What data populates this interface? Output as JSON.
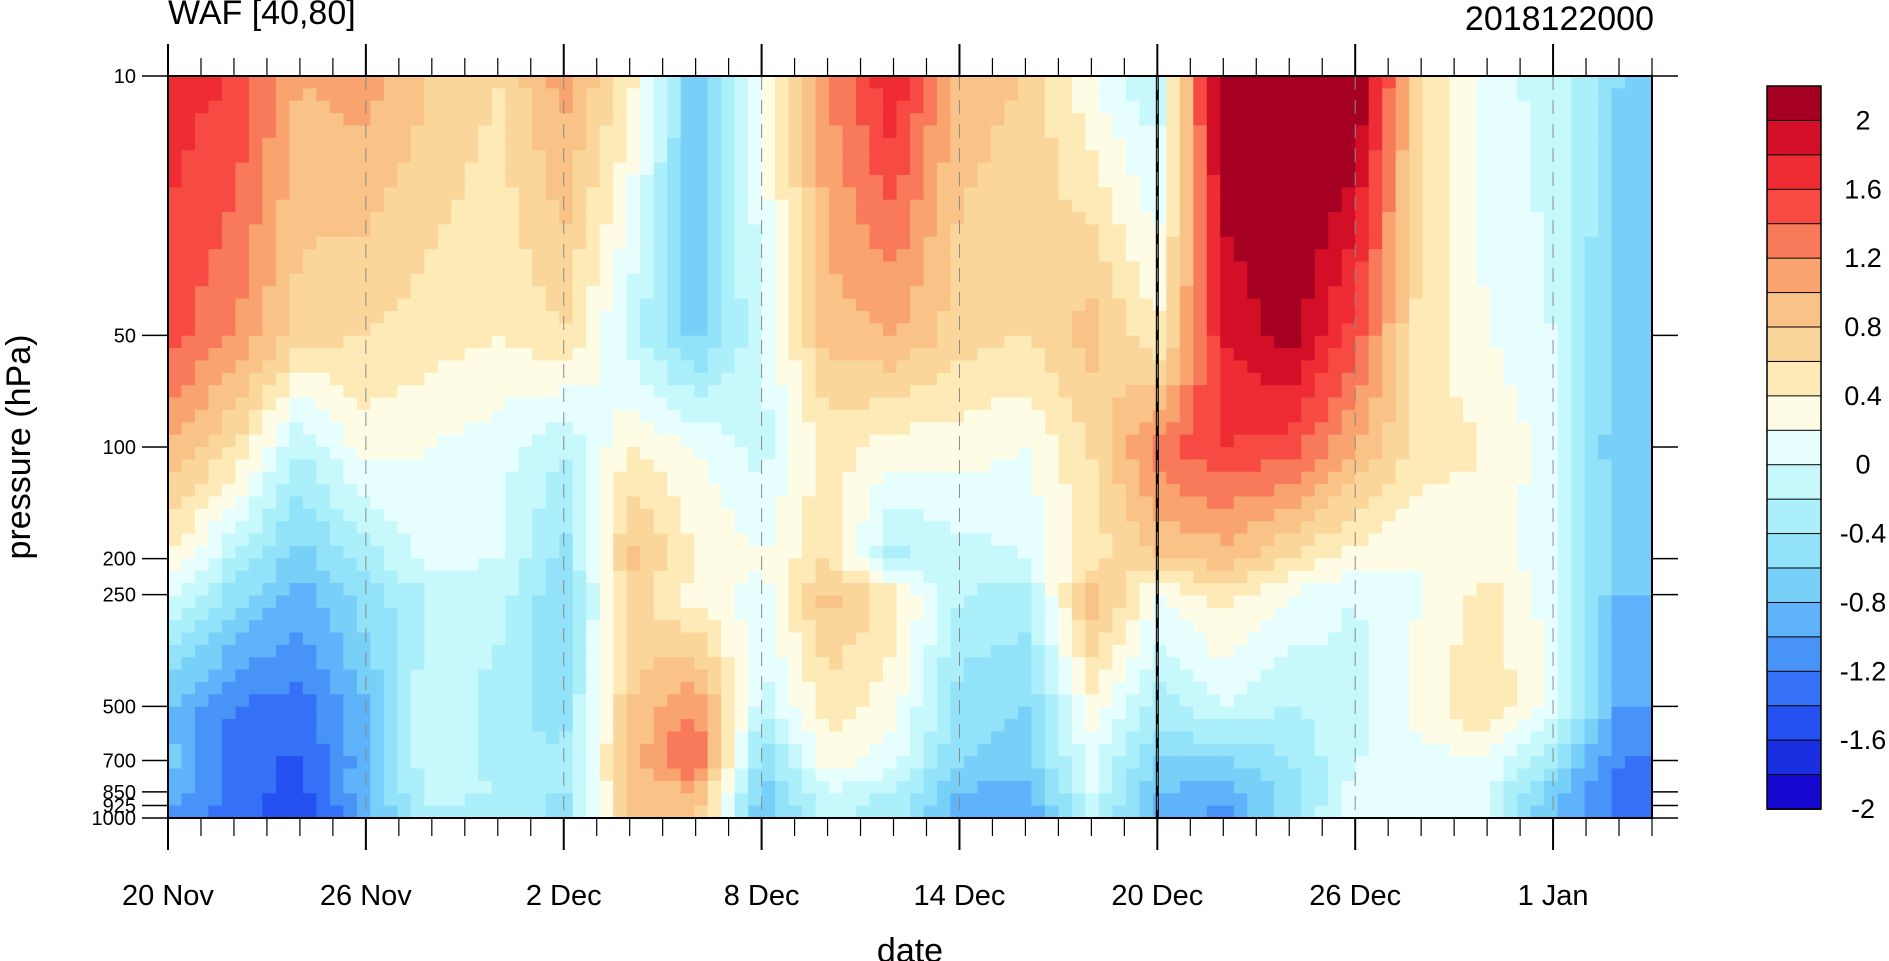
{
  "chart_data": {
    "type": "heatmap",
    "title": "WAF [40,80]",
    "subtitle": "2018122000",
    "xlabel": "date",
    "ylabel": "pressure (hPa)",
    "x_ticks": [
      "20 Nov",
      "26 Nov",
      "2 Dec",
      "8 Dec",
      "14 Dec",
      "20 Dec",
      "26 Dec",
      "1 Jan"
    ],
    "y_ticks": [
      "10",
      "50",
      "100",
      "200",
      "250",
      "500",
      "700",
      "850",
      "925",
      "1000"
    ],
    "y_scale": "log",
    "ylim": [
      1000,
      10
    ],
    "grid": false,
    "marked_date": "20 Dec",
    "legend": {
      "position": "right",
      "labels": [
        "2",
        "1.6",
        "1.2",
        "0.8",
        "0.4",
        "0",
        "-0.4",
        "-0.8",
        "-1.2",
        "-1.6",
        "-2"
      ],
      "levels": [
        2.2,
        2.0,
        1.8,
        1.6,
        1.4,
        1.2,
        1.0,
        0.8,
        0.6,
        0.4,
        0.2,
        0.0,
        -0.2,
        -0.4,
        -0.6,
        -0.8,
        -1.0,
        -1.2,
        -1.4,
        -1.6,
        -1.8,
        -2.0,
        -2.2
      ],
      "colors": [
        "#a50021",
        "#d20f26",
        "#ef2b33",
        "#f64a42",
        "#f87a5a",
        "#f9a46f",
        "#f9c287",
        "#fbd69b",
        "#fdeab6",
        "#fffce6",
        "#e6fffe",
        "#c7f8fc",
        "#aaeffa",
        "#92e3f9",
        "#78d0f9",
        "#5fb3fa",
        "#4893f8",
        "#3471f6",
        "#2350ee",
        "#1a2fe2",
        "#1508d0"
      ]
    },
    "columns": [
      {
        "date": "20 Nov",
        "values": [
          1.7,
          1.5,
          1.0,
          0.4,
          0.1,
          -0.8,
          -0.7,
          -0.9,
          -1.0,
          -1.1
        ]
      },
      {
        "date": "22 Nov",
        "values": [
          1.6,
          1.2,
          0.6,
          -0.2,
          -0.5,
          -1.2,
          -1.4,
          -1.2,
          -1.3,
          -1.3
        ]
      },
      {
        "date": "24 Nov",
        "values": [
          1.0,
          0.7,
          -0.2,
          -0.7,
          -0.9,
          -1.3,
          -1.4,
          -1.5,
          -1.6,
          -1.6
        ]
      },
      {
        "date": "26 Nov",
        "values": [
          1.1,
          0.6,
          0.3,
          -0.3,
          -0.5,
          -0.8,
          -0.9,
          -0.8,
          -0.9,
          -0.9
        ]
      },
      {
        "date": "28 Nov",
        "values": [
          0.8,
          0.5,
          0.2,
          0.1,
          -0.2,
          0.0,
          0.0,
          -0.1,
          -0.2,
          -0.2
        ]
      },
      {
        "date": "30 Nov",
        "values": [
          0.6,
          0.4,
          0.1,
          0.0,
          -0.1,
          -0.3,
          -0.3,
          -0.2,
          -0.3,
          -0.3
        ]
      },
      {
        "date": "2 Dec",
        "values": [
          1.1,
          0.6,
          -0.2,
          -0.5,
          -0.6,
          -0.5,
          -0.4,
          -0.4,
          -0.5,
          -0.4
        ]
      },
      {
        "date": "4 Dec",
        "values": [
          0.5,
          -0.1,
          0.4,
          0.9,
          0.7,
          0.8,
          0.9,
          0.8,
          0.9,
          0.7
        ]
      },
      {
        "date": "6 Dec",
        "values": [
          -0.8,
          -0.7,
          0.2,
          0.4,
          0.3,
          1.2,
          1.5,
          1.0,
          0.9,
          0.9
        ]
      },
      {
        "date": "8 Dec",
        "values": [
          0.2,
          0.0,
          -0.1,
          0.2,
          0.1,
          -0.1,
          -0.6,
          -0.7,
          -0.8,
          -0.8
        ]
      },
      {
        "date": "10 Dec",
        "values": [
          1.2,
          0.9,
          0.5,
          0.6,
          0.9,
          0.5,
          0.3,
          0.0,
          -0.1,
          -0.1
        ]
      },
      {
        "date": "12 Dec",
        "values": [
          1.8,
          1.0,
          0.3,
          -0.3,
          0.5,
          0.3,
          0.1,
          -0.2,
          -0.3,
          -0.3
        ]
      },
      {
        "date": "14 Dec",
        "values": [
          0.9,
          0.7,
          0.3,
          -0.1,
          -0.2,
          -0.5,
          -0.6,
          -0.8,
          -0.9,
          -0.9
        ]
      },
      {
        "date": "16 Dec",
        "values": [
          0.8,
          0.6,
          0.2,
          0.0,
          -0.3,
          -0.6,
          -0.7,
          -0.9,
          -1.0,
          -1.0
        ]
      },
      {
        "date": "18 Dec",
        "values": [
          0.2,
          0.9,
          0.6,
          0.5,
          1.0,
          0.3,
          0.1,
          0.0,
          -0.1,
          -0.1
        ]
      },
      {
        "date": "20 Dec",
        "values": [
          -0.2,
          0.4,
          1.3,
          0.8,
          0.2,
          -0.3,
          -0.6,
          -0.8,
          -0.9,
          -0.9
        ]
      },
      {
        "date": "22 Dec",
        "values": [
          2.3,
          1.8,
          1.6,
          0.9,
          0.5,
          0.0,
          -0.6,
          -0.9,
          -1.1,
          -1.0
        ]
      },
      {
        "date": "24 Dec",
        "values": [
          2.4,
          2.1,
          1.5,
          0.6,
          0.2,
          -0.2,
          -0.4,
          -0.5,
          -0.5,
          -0.4
        ]
      },
      {
        "date": "26 Dec",
        "values": [
          2.3,
          1.5,
          1.0,
          0.3,
          0.0,
          -0.1,
          0.0,
          0.1,
          0.1,
          0.1
        ]
      },
      {
        "date": "28 Dec",
        "values": [
          0.6,
          0.5,
          0.5,
          0.2,
          0.2,
          0.3,
          0.1,
          0.0,
          0.0,
          0.0
        ]
      },
      {
        "date": "30 Dec",
        "values": [
          0.1,
          0.2,
          0.4,
          0.3,
          0.5,
          0.6,
          0.2,
          0.0,
          0.0,
          0.0
        ]
      },
      {
        "date": "1 Jan",
        "values": [
          -0.1,
          0.0,
          0.1,
          0.0,
          0.1,
          0.1,
          -0.4,
          -0.7,
          -0.8,
          -0.8
        ]
      },
      {
        "date": "3 Jan",
        "values": [
          -0.6,
          -0.7,
          -0.8,
          -0.7,
          -0.8,
          -1.0,
          -1.2,
          -1.3,
          -1.3,
          -1.2
        ]
      }
    ]
  }
}
